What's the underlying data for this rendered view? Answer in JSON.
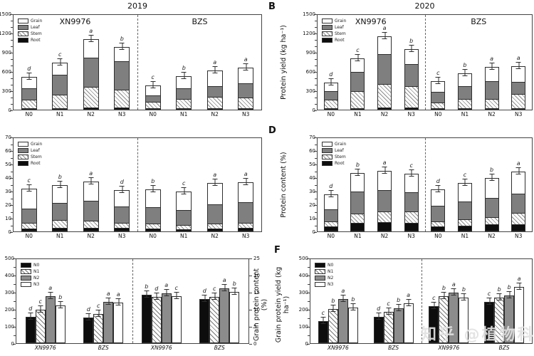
{
  "figure": {
    "watermark": "知乎 @植物科",
    "colors": {
      "axis": "#444444",
      "leaf_gray": "#7f7f7f",
      "bar_gray": "#8c8c8c",
      "root_black": "#0d0d0d",
      "grain_white": "#ffffff"
    }
  },
  "chart_data": [
    {
      "id": "A",
      "type": "stacked-bar",
      "letter": "",
      "title": "2019",
      "ylabel": "",
      "ylim": [
        0,
        1500
      ],
      "yticks": [
        0,
        300,
        600,
        900,
        1200,
        1500
      ],
      "legend": [
        "Grain",
        "Leaf",
        "Stem",
        "Root"
      ],
      "group_labels": [
        "XN9976",
        "BZS"
      ],
      "bars": [
        {
          "cat": "N0",
          "root": 10,
          "stem": 140,
          "leaf": 190,
          "grain": 170,
          "letter": "d"
        },
        {
          "cat": "N1",
          "root": 10,
          "stem": 220,
          "leaf": 315,
          "grain": 185,
          "letter": "c"
        },
        {
          "cat": "N2",
          "root": 20,
          "stem": 330,
          "leaf": 470,
          "grain": 280,
          "letter": "a"
        },
        {
          "cat": "N3",
          "root": 20,
          "stem": 290,
          "leaf": 450,
          "grain": 220,
          "letter": "b"
        },
        {
          "cat": "N0",
          "root": 8,
          "stem": 102,
          "leaf": 110,
          "grain": 155,
          "letter": "c"
        },
        {
          "cat": "N1",
          "root": 8,
          "stem": 157,
          "leaf": 175,
          "grain": 180,
          "letter": "b"
        },
        {
          "cat": "N2",
          "root": 10,
          "stem": 185,
          "leaf": 170,
          "grain": 245,
          "letter": "a"
        },
        {
          "cat": "N3",
          "root": 10,
          "stem": 175,
          "leaf": 225,
          "grain": 245,
          "letter": "a"
        }
      ]
    },
    {
      "id": "B",
      "type": "stacked-bar",
      "letter": "B",
      "title": "2020",
      "ylabel": "Protein yield (kg ha⁻¹)",
      "ylim": [
        0,
        1500
      ],
      "yticks": [
        0,
        300,
        600,
        900,
        1200,
        1500
      ],
      "legend": [
        "Grain",
        "Leaf",
        "Stem",
        "Root"
      ],
      "group_labels": [
        "XN9976",
        "BZS"
      ],
      "bars": [
        {
          "cat": "N0",
          "root": 10,
          "stem": 145,
          "leaf": 140,
          "grain": 125,
          "letter": "d"
        },
        {
          "cat": "N1",
          "root": 15,
          "stem": 275,
          "leaf": 305,
          "grain": 205,
          "letter": "c"
        },
        {
          "cat": "N2",
          "root": 20,
          "stem": 380,
          "leaf": 470,
          "grain": 280,
          "letter": "a"
        },
        {
          "cat": "N3",
          "root": 20,
          "stem": 340,
          "leaf": 360,
          "grain": 220,
          "letter": "b"
        },
        {
          "cat": "N0",
          "root": 10,
          "stem": 95,
          "leaf": 175,
          "grain": 160,
          "letter": "c"
        },
        {
          "cat": "N1",
          "root": 10,
          "stem": 155,
          "leaf": 210,
          "grain": 195,
          "letter": "b"
        },
        {
          "cat": "N2",
          "root": 10,
          "stem": 155,
          "leaf": 285,
          "grain": 215,
          "letter": "a"
        },
        {
          "cat": "N3",
          "root": 10,
          "stem": 225,
          "leaf": 205,
          "grain": 240,
          "letter": "a"
        }
      ]
    },
    {
      "id": "C",
      "type": "stacked-bar",
      "letter": "",
      "title": "",
      "ylabel": "",
      "ylim": [
        0,
        70
      ],
      "yticks": [
        0,
        10,
        20,
        30,
        40,
        50,
        60,
        70
      ],
      "legend": [
        "Grain",
        "Leaf",
        "Stem",
        "Root"
      ],
      "group_labels": [],
      "bars": [
        {
          "cat": "N0",
          "root": 1.5,
          "stem": 4.5,
          "leaf": 11,
          "grain": 14.5,
          "letter": "c"
        },
        {
          "cat": "N1",
          "root": 2,
          "stem": 6,
          "leaf": 13,
          "grain": 13,
          "letter": "b"
        },
        {
          "cat": "N2",
          "root": 2,
          "stem": 5.5,
          "leaf": 15,
          "grain": 14.5,
          "letter": "a"
        },
        {
          "cat": "N3",
          "root": 2,
          "stem": 4,
          "leaf": 12.5,
          "grain": 12,
          "letter": "d"
        },
        {
          "cat": "N0",
          "root": 1.5,
          "stem": 4,
          "leaf": 12.5,
          "grain": 13,
          "letter": "b"
        },
        {
          "cat": "N1",
          "root": 1,
          "stem": 3.5,
          "leaf": 11.5,
          "grain": 13.5,
          "letter": "c"
        },
        {
          "cat": "N2",
          "root": 1.5,
          "stem": 4,
          "leaf": 14.5,
          "grain": 16,
          "letter": "a"
        },
        {
          "cat": "N3",
          "root": 2,
          "stem": 4,
          "leaf": 15.5,
          "grain": 15,
          "letter": "a"
        }
      ]
    },
    {
      "id": "D",
      "type": "stacked-bar",
      "letter": "D",
      "title": "",
      "ylabel": "Protein content (%)",
      "ylim": [
        0,
        70
      ],
      "yticks": [
        0,
        10,
        20,
        30,
        40,
        50,
        60,
        70
      ],
      "legend": [
        "Grain",
        "Leaf",
        "Stem",
        "Root"
      ],
      "group_labels": [],
      "bars": [
        {
          "cat": "N0",
          "root": 3.5,
          "stem": 3.5,
          "leaf": 9.5,
          "grain": 11,
          "letter": "d"
        },
        {
          "cat": "N1",
          "root": 6,
          "stem": 7,
          "leaf": 16.5,
          "grain": 13.5,
          "letter": "b"
        },
        {
          "cat": "N2",
          "root": 6.5,
          "stem": 8,
          "leaf": 16,
          "grain": 14.5,
          "letter": "a"
        },
        {
          "cat": "N3",
          "root": 6,
          "stem": 8.5,
          "leaf": 14.5,
          "grain": 13.5,
          "letter": "c"
        },
        {
          "cat": "N0",
          "root": 3.5,
          "stem": 3.5,
          "leaf": 12,
          "grain": 12,
          "letter": "d"
        },
        {
          "cat": "N1",
          "root": 4,
          "stem": 4.5,
          "leaf": 14,
          "grain": 13.5,
          "letter": "c"
        },
        {
          "cat": "N2",
          "root": 5,
          "stem": 5.5,
          "leaf": 14.5,
          "grain": 14.5,
          "letter": "b"
        },
        {
          "cat": "N3",
          "root": 5,
          "stem": 8.5,
          "leaf": 14.5,
          "grain": 16,
          "letter": "a"
        }
      ]
    },
    {
      "id": "E",
      "type": "grouped-bar",
      "letter": "",
      "title": "",
      "ylabel": "",
      "ylim": [
        0,
        500
      ],
      "yticks": [
        0,
        100,
        200,
        300,
        400,
        500
      ],
      "right_axis": {
        "label": "Grain protein content (%)",
        "ylim": [
          0,
          25
        ],
        "yticks": [
          0,
          5,
          10,
          15,
          20,
          25
        ]
      },
      "legend": [
        "N0",
        "N1",
        "N2",
        "N3"
      ],
      "groups": [
        {
          "label": "XN9976",
          "values": [
            155,
            195,
            275,
            220
          ],
          "letters": [
            "d",
            "c",
            "a",
            "b"
          ]
        },
        {
          "label": "BZS",
          "values": [
            150,
            172,
            240,
            238
          ],
          "letters": [
            "d",
            "c",
            "a",
            "a"
          ]
        },
        {
          "label": "XN9976",
          "values": [
            283,
            272,
            292,
            277
          ],
          "letters": [
            "b",
            "d",
            "a",
            "c"
          ]
        },
        {
          "label": "BZS",
          "values": [
            258,
            272,
            320,
            298
          ],
          "letters": [
            "d",
            "c",
            "a",
            "b"
          ]
        }
      ]
    },
    {
      "id": "F",
      "type": "grouped-bar",
      "letter": "F",
      "title": "",
      "ylabel": "Grain protein yield (kg ha⁻¹)",
      "ylim": [
        0,
        500
      ],
      "yticks": [
        0,
        100,
        200,
        300,
        400,
        500
      ],
      "legend": [
        "N0",
        "N1",
        "N2",
        "N3"
      ],
      "groups": [
        {
          "label": "XN9976",
          "values": [
            130,
            200,
            260,
            210
          ],
          "letters": [
            "c",
            "b",
            "a",
            "b"
          ]
        },
        {
          "label": "BZS",
          "values": [
            155,
            185,
            205,
            235
          ],
          "letters": [
            "d",
            "c",
            "b",
            "a"
          ]
        },
        {
          "label": "XN9976",
          "values": [
            215,
            275,
            295,
            265
          ],
          "letters": [
            "c",
            "b",
            "a",
            "b"
          ]
        },
        {
          "label": "BZS",
          "values": [
            240,
            265,
            280,
            330
          ],
          "letters": [
            "c",
            "b",
            "b",
            "a"
          ]
        }
      ]
    }
  ]
}
